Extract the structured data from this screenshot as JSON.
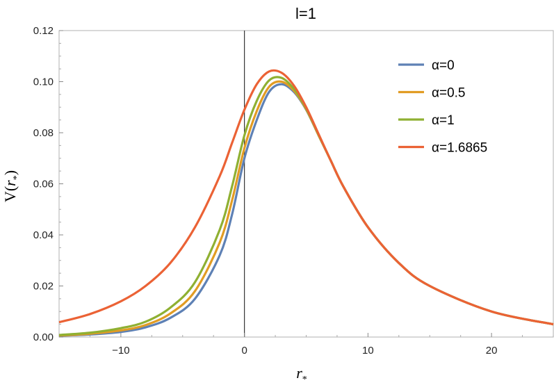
{
  "chart_data": {
    "type": "line",
    "title": "l=1",
    "xlabel": "r*",
    "ylabel": "V(r*)",
    "xlim": [
      -15,
      25
    ],
    "ylim": [
      0,
      0.12
    ],
    "x_ticks": [
      -10,
      0,
      10,
      20
    ],
    "x_tick_labels": [
      "−10",
      "0",
      "10",
      "20"
    ],
    "y_ticks": [
      0.0,
      0.02,
      0.04,
      0.06,
      0.08,
      0.1,
      0.12
    ],
    "y_tick_labels": [
      "0.00",
      "0.02",
      "0.04",
      "0.06",
      "0.08",
      "0.10",
      "0.12"
    ],
    "vertical_line_at_x": 0,
    "grid": false,
    "legend_position": "top-right",
    "x": [
      -15,
      -12.5,
      -10,
      -8,
      -6,
      -4,
      -2,
      -1,
      0,
      1,
      2,
      3,
      4,
      5,
      6,
      7,
      8,
      10,
      12.5,
      15,
      20,
      25
    ],
    "series": [
      {
        "name": "α=0",
        "color": "#5E81B5",
        "values": [
          0.0005,
          0.001,
          0.002,
          0.0038,
          0.0075,
          0.015,
          0.032,
          0.048,
          0.07,
          0.085,
          0.096,
          0.099,
          0.096,
          0.089,
          0.079,
          0.069,
          0.059,
          0.043,
          0.029,
          0.02,
          0.01,
          0.005
        ]
      },
      {
        "name": "α=0.5",
        "color": "#E19C24",
        "values": [
          0.0006,
          0.0013,
          0.0026,
          0.0047,
          0.0092,
          0.018,
          0.037,
          0.0535,
          0.074,
          0.0885,
          0.098,
          0.1,
          0.0965,
          0.0892,
          0.079,
          0.069,
          0.059,
          0.043,
          0.029,
          0.02,
          0.01,
          0.005
        ]
      },
      {
        "name": "α=1",
        "color": "#8FB032",
        "values": [
          0.0008,
          0.0017,
          0.0035,
          0.006,
          0.0115,
          0.0215,
          0.042,
          0.059,
          0.079,
          0.0925,
          0.1005,
          0.1015,
          0.0972,
          0.0895,
          0.0792,
          0.069,
          0.059,
          0.043,
          0.029,
          0.02,
          0.01,
          0.005
        ]
      },
      {
        "name": "α=1.6865",
        "color": "#EB6235",
        "values": [
          0.0058,
          0.009,
          0.014,
          0.02,
          0.029,
          0.043,
          0.063,
          0.076,
          0.089,
          0.099,
          0.104,
          0.1035,
          0.0985,
          0.09,
          0.0795,
          0.069,
          0.059,
          0.043,
          0.029,
          0.02,
          0.01,
          0.005
        ]
      }
    ]
  }
}
